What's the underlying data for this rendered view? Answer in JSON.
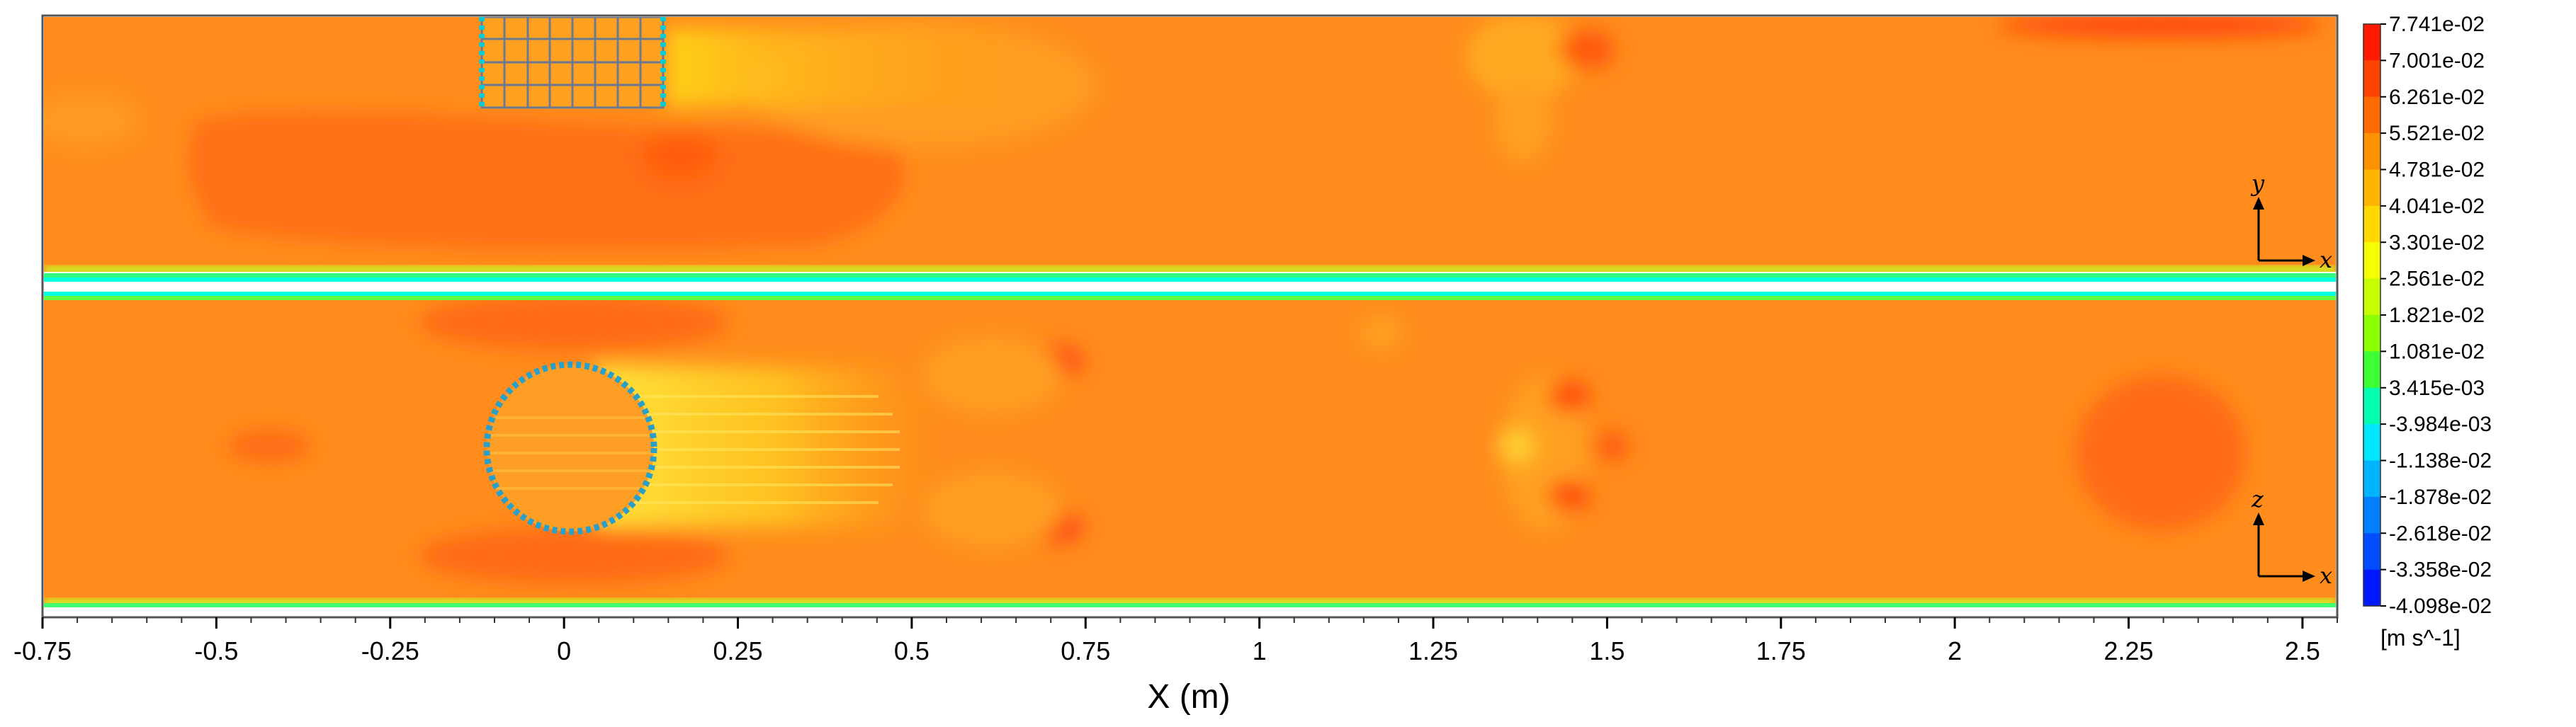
{
  "chart_data": {
    "type": "heatmap",
    "quantity_unit": "[m s^-1]",
    "xlabel": "X (m)",
    "xlim": [
      -0.75,
      2.55
    ],
    "x_ticks": [
      -0.75,
      -0.5,
      -0.25,
      0,
      0.25,
      0.5,
      0.75,
      1,
      1.25,
      1.5,
      1.75,
      2,
      2.25,
      2.5
    ],
    "x_tick_labels": [
      "-0.75",
      "-0.5",
      "-0.25",
      "0",
      "0.25",
      "0.5",
      "0.75",
      "1",
      "1.25",
      "1.5",
      "1.75",
      "2",
      "2.25",
      "2.5"
    ],
    "colorbar": {
      "min": -0.04098,
      "max": 0.07741,
      "labels": [
        "7.741e-02",
        "7.001e-02",
        "6.261e-02",
        "5.521e-02",
        "4.781e-02",
        "4.041e-02",
        "3.301e-02",
        "2.561e-02",
        "1.821e-02",
        "1.081e-02",
        "3.415e-03",
        "-3.984e-03",
        "-1.138e-02",
        "-1.878e-02",
        "-2.618e-02",
        "-3.358e-02",
        "-4.098e-02"
      ],
      "colors": [
        "#ff1a00",
        "#ff4400",
        "#ff6a00",
        "#ff9000",
        "#ffb400",
        "#ffd800",
        "#f6ff00",
        "#c8ff00",
        "#8cff00",
        "#3cff35",
        "#00ffae",
        "#00e6ff",
        "#00b4ff",
        "#0080ff",
        "#004cff",
        "#0018ff"
      ]
    },
    "panels": [
      {
        "view": "x-y",
        "axes": [
          "y",
          "x"
        ],
        "obstacle": "rectangle",
        "obstacle_x": [
          -0.12,
          0.13
        ]
      },
      {
        "view": "x-z",
        "axes": [
          "z",
          "x"
        ],
        "obstacle": "circle",
        "obstacle_center_x": 0,
        "obstacle_radius": 0.125
      }
    ]
  }
}
